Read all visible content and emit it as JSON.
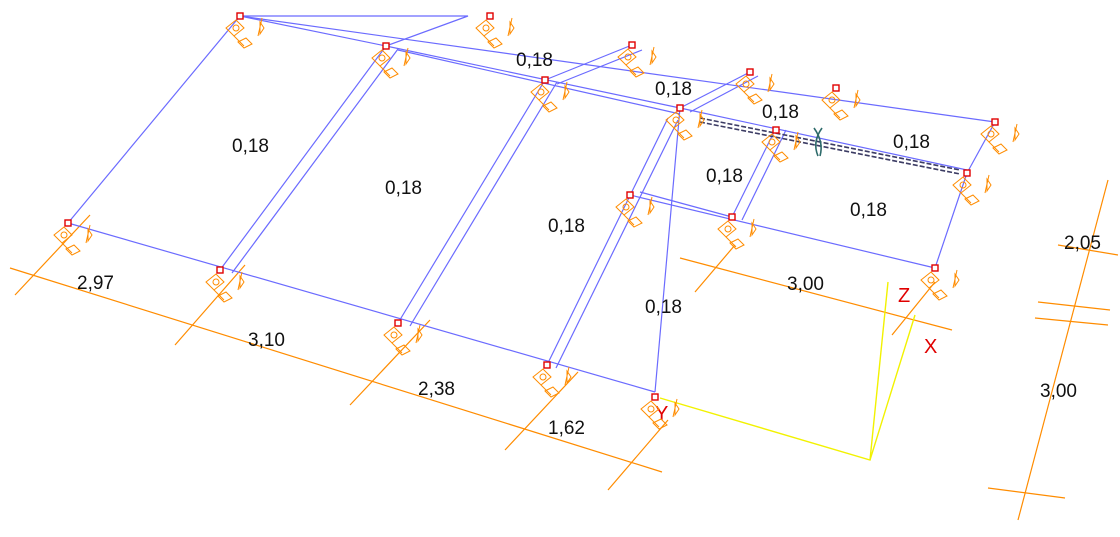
{
  "colors": {
    "edges": "#6b6bff",
    "dimension": "#ff8c00",
    "support": "#ff8c00",
    "node": "#e00000",
    "axis_line": "#f2f200",
    "axis_text": "#e00000",
    "rigid_link": "#3c3c64"
  },
  "plates": [
    {
      "id": "plate-1",
      "thickness": "0,18"
    },
    {
      "id": "plate-2",
      "thickness": "0,18"
    },
    {
      "id": "plate-3",
      "thickness": "0,18"
    },
    {
      "id": "plate-4",
      "thickness": "0,18"
    },
    {
      "id": "plate-5",
      "thickness": "0,18"
    },
    {
      "id": "plate-6",
      "thickness": "0,18"
    },
    {
      "id": "plate-7",
      "thickness": "0,18"
    },
    {
      "id": "plate-8",
      "thickness": "0,18"
    },
    {
      "id": "plate-9",
      "thickness": "0,18"
    },
    {
      "id": "plate-10",
      "thickness": "0,18"
    }
  ],
  "dimensions": {
    "front": [
      "2,97",
      "3,10",
      "2,38",
      "1,62"
    ],
    "inner": "3,00",
    "side": [
      "2,05",
      "3,00"
    ]
  },
  "axes": {
    "x": "X",
    "y": "Y",
    "z": "Z"
  }
}
